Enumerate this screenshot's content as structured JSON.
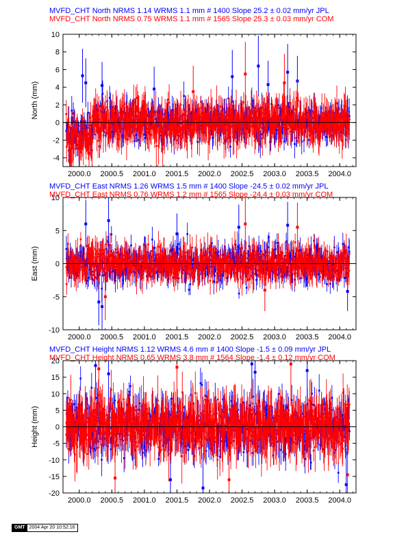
{
  "stamp": {
    "logo": "GMT",
    "time": "2004 Apr 20 10:52:16"
  },
  "colors": {
    "jpl": "#0000ff",
    "com": "#ff0000",
    "zero": "#000000",
    "frame": "#000000"
  },
  "chart_data": [
    {
      "type": "scatter",
      "xlabel": "",
      "ylabel": "North (mm)",
      "xlim": [
        1999.75,
        2004.25
      ],
      "ylim": [
        -5,
        10
      ],
      "xticks": [
        "2000.0",
        "2000.5",
        "2001.0",
        "2001.5",
        "2002.0",
        "2002.5",
        "2003.0",
        "2003.5",
        "2004.0"
      ],
      "yticks": [
        "-4",
        "-2",
        "0",
        "2",
        "4",
        "6",
        "8",
        "10"
      ],
      "grid": false,
      "legend": [
        {
          "text": "MVFD_CHT North NRMS 1.14 WRMS  1.1 mm # 1400 Slope   25.2 ±  0.02 mm/yr JPL",
          "color": "#0000ff"
        },
        {
          "text": "MVFD_CHT North NRMS 0.75 WRMS  1.1 mm # 1565 Slope   25.3 ±  0.03 mm/yr COM",
          "color": "#ff0000"
        }
      ],
      "series": [
        {
          "name": "JPL",
          "color": "#0000ff",
          "count": 1400,
          "sigma": 1.1,
          "err": 1.2,
          "x_start": 1999.8,
          "x_end": 2004.15,
          "spikes": [
            [
              2000.05,
              5.3
            ],
            [
              2000.1,
              4.5
            ],
            [
              2000.35,
              4.2
            ],
            [
              2001.15,
              3.8
            ],
            [
              2002.35,
              5.2
            ],
            [
              2002.75,
              6.4
            ],
            [
              2003.2,
              5.7
            ],
            [
              2003.35,
              4.7
            ],
            [
              2002.9,
              4.3
            ]
          ]
        },
        {
          "name": "COM",
          "color": "#ff0000",
          "count": 1565,
          "sigma": 1.1,
          "err": 1.7,
          "x_start": 1999.8,
          "x_end": 2004.15,
          "spikes": [
            [
              1999.85,
              -4.3
            ],
            [
              2002.55,
              5.5
            ],
            [
              2000.15,
              -3.5
            ],
            [
              2001.75,
              3.5
            ],
            [
              2003.15,
              4.5
            ]
          ]
        }
      ]
    },
    {
      "type": "scatter",
      "xlabel": "",
      "ylabel": "East (mm)",
      "xlim": [
        1999.75,
        2004.25
      ],
      "ylim": [
        -10,
        10
      ],
      "xticks": [
        "2000.0",
        "2000.5",
        "2001.0",
        "2001.5",
        "2002.0",
        "2002.5",
        "2003.0",
        "2003.5",
        "2004.0"
      ],
      "yticks": [
        "-10",
        "-5",
        "0",
        "5",
        "10"
      ],
      "grid": false,
      "legend": [
        {
          "text": "MVFD_CHT East NRMS 1.26 WRMS  1.5 mm # 1400 Slope  -24.5 ±  0.02 mm/yr JPL",
          "color": "#0000ff"
        },
        {
          "text": "MVFD_CHT East NRMS 0.76 WRMS  1.2 mm # 1565 Slope  -24.4 ±  0.03 mm/yr COM",
          "color": "#ff0000"
        }
      ],
      "series": [
        {
          "name": "JPL",
          "color": "#0000ff",
          "count": 1400,
          "sigma": 1.5,
          "err": 1.5,
          "x_start": 1999.8,
          "x_end": 2004.15,
          "spikes": [
            [
              2000.1,
              6.0
            ],
            [
              2000.3,
              -5.8
            ],
            [
              2000.35,
              -6.5
            ],
            [
              2000.45,
              6.5
            ],
            [
              2002.45,
              5.5
            ],
            [
              2003.2,
              5.8
            ],
            [
              2004.12,
              -4.2
            ],
            [
              2001.5,
              4.5
            ]
          ]
        },
        {
          "name": "COM",
          "color": "#ff0000",
          "count": 1565,
          "sigma": 1.2,
          "err": 1.8,
          "x_start": 1999.8,
          "x_end": 2004.15,
          "spikes": [
            [
              2002.55,
              6.0
            ],
            [
              2000.4,
              -5.0
            ],
            [
              2003.35,
              5.5
            ],
            [
              2002.85,
              -4.0
            ]
          ]
        }
      ]
    },
    {
      "type": "scatter",
      "xlabel": "",
      "ylabel": "Height (mm)",
      "xlim": [
        1999.75,
        2004.25
      ],
      "ylim": [
        -20,
        20
      ],
      "xticks": [
        "2000.0",
        "2000.5",
        "2001.0",
        "2001.5",
        "2002.0",
        "2002.5",
        "2003.0",
        "2003.5",
        "2004.0"
      ],
      "yticks": [
        "-20",
        "-15",
        "-10",
        "-5",
        "0",
        "5",
        "10",
        "15",
        "20"
      ],
      "grid": false,
      "legend": [
        {
          "text": "MVFD_CHT Height NRMS 1.12 WRMS  4.6 mm # 1400 Slope   -1.5 ±  0.09 mm/yr JPL",
          "color": "#0000ff"
        },
        {
          "text": "MVFD_CHT Height NRMS 0.65 WRMS  3.8 mm # 1564 Slope   -1.4 ±  0.12 mm/yr COM",
          "color": "#ff0000"
        }
      ],
      "series": [
        {
          "name": "JPL",
          "color": "#0000ff",
          "count": 1400,
          "sigma": 4.6,
          "err": 4.0,
          "x_start": 1999.8,
          "x_end": 2004.15,
          "spikes": [
            [
              2000.25,
              18.5
            ],
            [
              2000.45,
              16.0
            ],
            [
              2001.4,
              -16.0
            ],
            [
              2001.9,
              -18.5
            ],
            [
              2002.65,
              19.0
            ],
            [
              2002.7,
              16.5
            ],
            [
              2003.5,
              17.0
            ],
            [
              2004.1,
              -17.5
            ]
          ]
        },
        {
          "name": "COM",
          "color": "#ff0000",
          "count": 1564,
          "sigma": 3.8,
          "err": 6.0,
          "x_start": 1999.8,
          "x_end": 2004.15,
          "spikes": [
            [
              2000.3,
              17.5
            ],
            [
              2000.55,
              -15.5
            ],
            [
              2001.5,
              18.0
            ],
            [
              2002.3,
              -16.0
            ],
            [
              2003.25,
              19.0
            ],
            [
              2004.12,
              -14.5
            ]
          ]
        }
      ]
    }
  ]
}
